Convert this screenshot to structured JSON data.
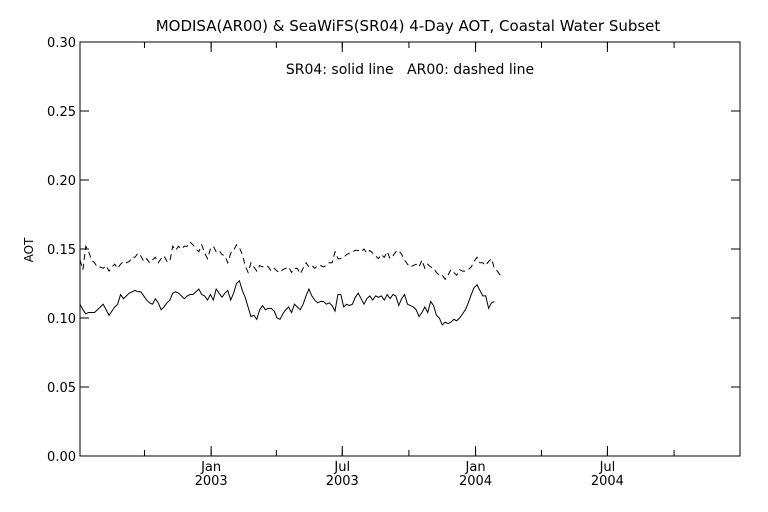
{
  "chart_data": {
    "type": "line",
    "title": "MODISA(AR00) & SeaWiFS(SR04) 4-Day AOT, Coastal Water Subset",
    "annotation": "SR04: solid line   AR00: dashed line",
    "xlabel": "",
    "ylabel": "AOT",
    "ylim": [
      0.0,
      0.3
    ],
    "yticks": [
      "0.00",
      "0.05",
      "0.10",
      "0.15",
      "0.20",
      "0.25",
      "0.30"
    ],
    "xlim": [
      "2002-07-04",
      "2004-12-31"
    ],
    "xticks": [
      {
        "date": "2003-01-01",
        "month": "Jan",
        "year": "2003"
      },
      {
        "date": "2003-07-01",
        "month": "Jul",
        "year": "2003"
      },
      {
        "date": "2004-01-01",
        "month": "Jan",
        "year": "2004"
      },
      {
        "date": "2004-07-01",
        "month": "Jul",
        "year": "2004"
      }
    ],
    "grid": false,
    "series": [
      {
        "name": "SR04",
        "style": "solid",
        "color": "#000000",
        "start": "2002-07-04",
        "step_days": 4,
        "values": [
          0.11,
          0.106,
          0.103,
          0.104,
          0.104,
          0.104,
          0.106,
          0.108,
          0.11,
          0.106,
          0.102,
          0.105,
          0.108,
          0.11,
          0.117,
          0.114,
          0.116,
          0.118,
          0.119,
          0.12,
          0.119,
          0.119,
          0.116,
          0.113,
          0.111,
          0.11,
          0.114,
          0.111,
          0.106,
          0.108,
          0.111,
          0.113,
          0.118,
          0.119,
          0.118,
          0.116,
          0.114,
          0.116,
          0.117,
          0.117,
          0.119,
          0.121,
          0.117,
          0.116,
          0.113,
          0.117,
          0.113,
          0.121,
          0.118,
          0.115,
          0.118,
          0.12,
          0.113,
          0.118,
          0.125,
          0.127,
          0.12,
          0.115,
          0.108,
          0.101,
          0.102,
          0.099,
          0.106,
          0.109,
          0.106,
          0.107,
          0.107,
          0.105,
          0.1,
          0.099,
          0.103,
          0.106,
          0.108,
          0.104,
          0.11,
          0.108,
          0.106,
          0.11,
          0.116,
          0.121,
          0.116,
          0.113,
          0.111,
          0.112,
          0.112,
          0.11,
          0.111,
          0.109,
          0.105,
          0.117,
          0.117,
          0.108,
          0.11,
          0.109,
          0.11,
          0.115,
          0.118,
          0.114,
          0.11,
          0.114,
          0.116,
          0.113,
          0.116,
          0.115,
          0.116,
          0.113,
          0.117,
          0.114,
          0.117,
          0.116,
          0.109,
          0.114,
          0.117,
          0.11,
          0.109,
          0.108,
          0.106,
          0.101,
          0.104,
          0.108,
          0.104,
          0.112,
          0.109,
          0.102,
          0.1,
          0.095,
          0.097,
          0.096,
          0.097,
          0.099,
          0.098,
          0.1,
          0.103,
          0.106,
          0.111,
          0.117,
          0.122,
          0.124,
          0.12,
          0.116,
          0.116,
          0.107,
          0.111,
          0.112
        ]
      },
      {
        "name": "AR00",
        "style": "dashed",
        "color": "#000000",
        "start": "2002-07-04",
        "step_days": 4,
        "values": [
          0.142,
          0.135,
          0.152,
          0.148,
          0.142,
          0.14,
          0.137,
          0.137,
          0.136,
          0.138,
          0.134,
          0.137,
          0.139,
          0.136,
          0.139,
          0.141,
          0.14,
          0.141,
          0.144,
          0.144,
          0.147,
          0.145,
          0.141,
          0.143,
          0.14,
          0.142,
          0.144,
          0.14,
          0.143,
          0.145,
          0.141,
          0.141,
          0.152,
          0.149,
          0.152,
          0.15,
          0.152,
          0.152,
          0.155,
          0.153,
          0.15,
          0.148,
          0.153,
          0.147,
          0.143,
          0.15,
          0.152,
          0.148,
          0.149,
          0.146,
          0.145,
          0.14,
          0.147,
          0.149,
          0.153,
          0.151,
          0.146,
          0.138,
          0.133,
          0.14,
          0.137,
          0.134,
          0.138,
          0.137,
          0.138,
          0.137,
          0.134,
          0.136,
          0.134,
          0.133,
          0.135,
          0.136,
          0.137,
          0.133,
          0.136,
          0.136,
          0.132,
          0.136,
          0.14,
          0.137,
          0.138,
          0.136,
          0.138,
          0.138,
          0.137,
          0.138,
          0.14,
          0.14,
          0.148,
          0.143,
          0.143,
          0.144,
          0.146,
          0.147,
          0.148,
          0.149,
          0.149,
          0.148,
          0.15,
          0.147,
          0.149,
          0.147,
          0.145,
          0.143,
          0.146,
          0.144,
          0.148,
          0.143,
          0.145,
          0.148,
          0.149,
          0.146,
          0.142,
          0.139,
          0.137,
          0.138,
          0.139,
          0.137,
          0.142,
          0.136,
          0.139,
          0.137,
          0.136,
          0.133,
          0.131,
          0.131,
          0.128,
          0.131,
          0.135,
          0.133,
          0.131,
          0.135,
          0.134,
          0.134,
          0.135,
          0.137,
          0.141,
          0.144,
          0.14,
          0.14,
          0.138,
          0.141,
          0.143,
          0.136,
          0.134,
          0.131
        ]
      }
    ]
  }
}
